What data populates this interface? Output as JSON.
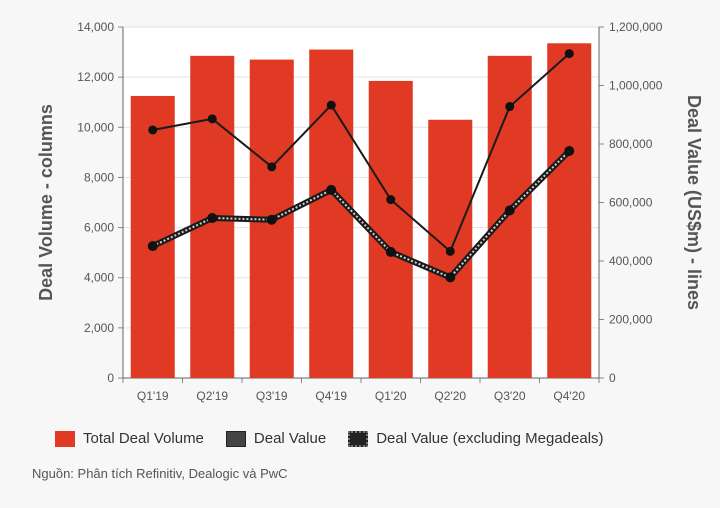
{
  "chart_data": {
    "type": "bar+line",
    "categories": [
      "Q1'19",
      "Q2'19",
      "Q3'19",
      "Q4'19",
      "Q1'20",
      "Q2'20",
      "Q3'20",
      "Q4'20"
    ],
    "series": [
      {
        "name": "Total Deal Volume",
        "type": "bar",
        "axis": "left",
        "color": "#e03a24",
        "values": [
          11250,
          12850,
          12700,
          13100,
          11850,
          10300,
          12850,
          13350
        ]
      },
      {
        "name": "Deal Value",
        "type": "line",
        "axis": "right",
        "color": "#222222",
        "style": "solid",
        "values": [
          848000,
          886000,
          722000,
          933000,
          610000,
          433000,
          928000,
          1109000
        ]
      },
      {
        "name": "Deal Value (excluding Megadeals)",
        "type": "line",
        "axis": "right",
        "color": "#222222",
        "style": "dotted",
        "values": [
          451000,
          547000,
          541000,
          643000,
          431000,
          344000,
          573000,
          776000
        ]
      }
    ],
    "ylabel": "Deal Volume - columns",
    "y2label": "Deal Value (US$m) - lines",
    "ylim": [
      0,
      14000
    ],
    "y2lim": [
      0,
      1200000
    ],
    "yticks": [
      "0",
      "2,000",
      "4,000",
      "6,000",
      "8,000",
      "10,000",
      "12,000",
      "14,000"
    ],
    "y2ticks": [
      "0",
      "200,000",
      "400,000",
      "600,000",
      "800,000",
      "1,000,000",
      "1,200,000"
    ],
    "grid": true,
    "legend_position": "bottom"
  },
  "source": "Nguồn: Phân tích Refinitiv, Dealogic và PwC"
}
